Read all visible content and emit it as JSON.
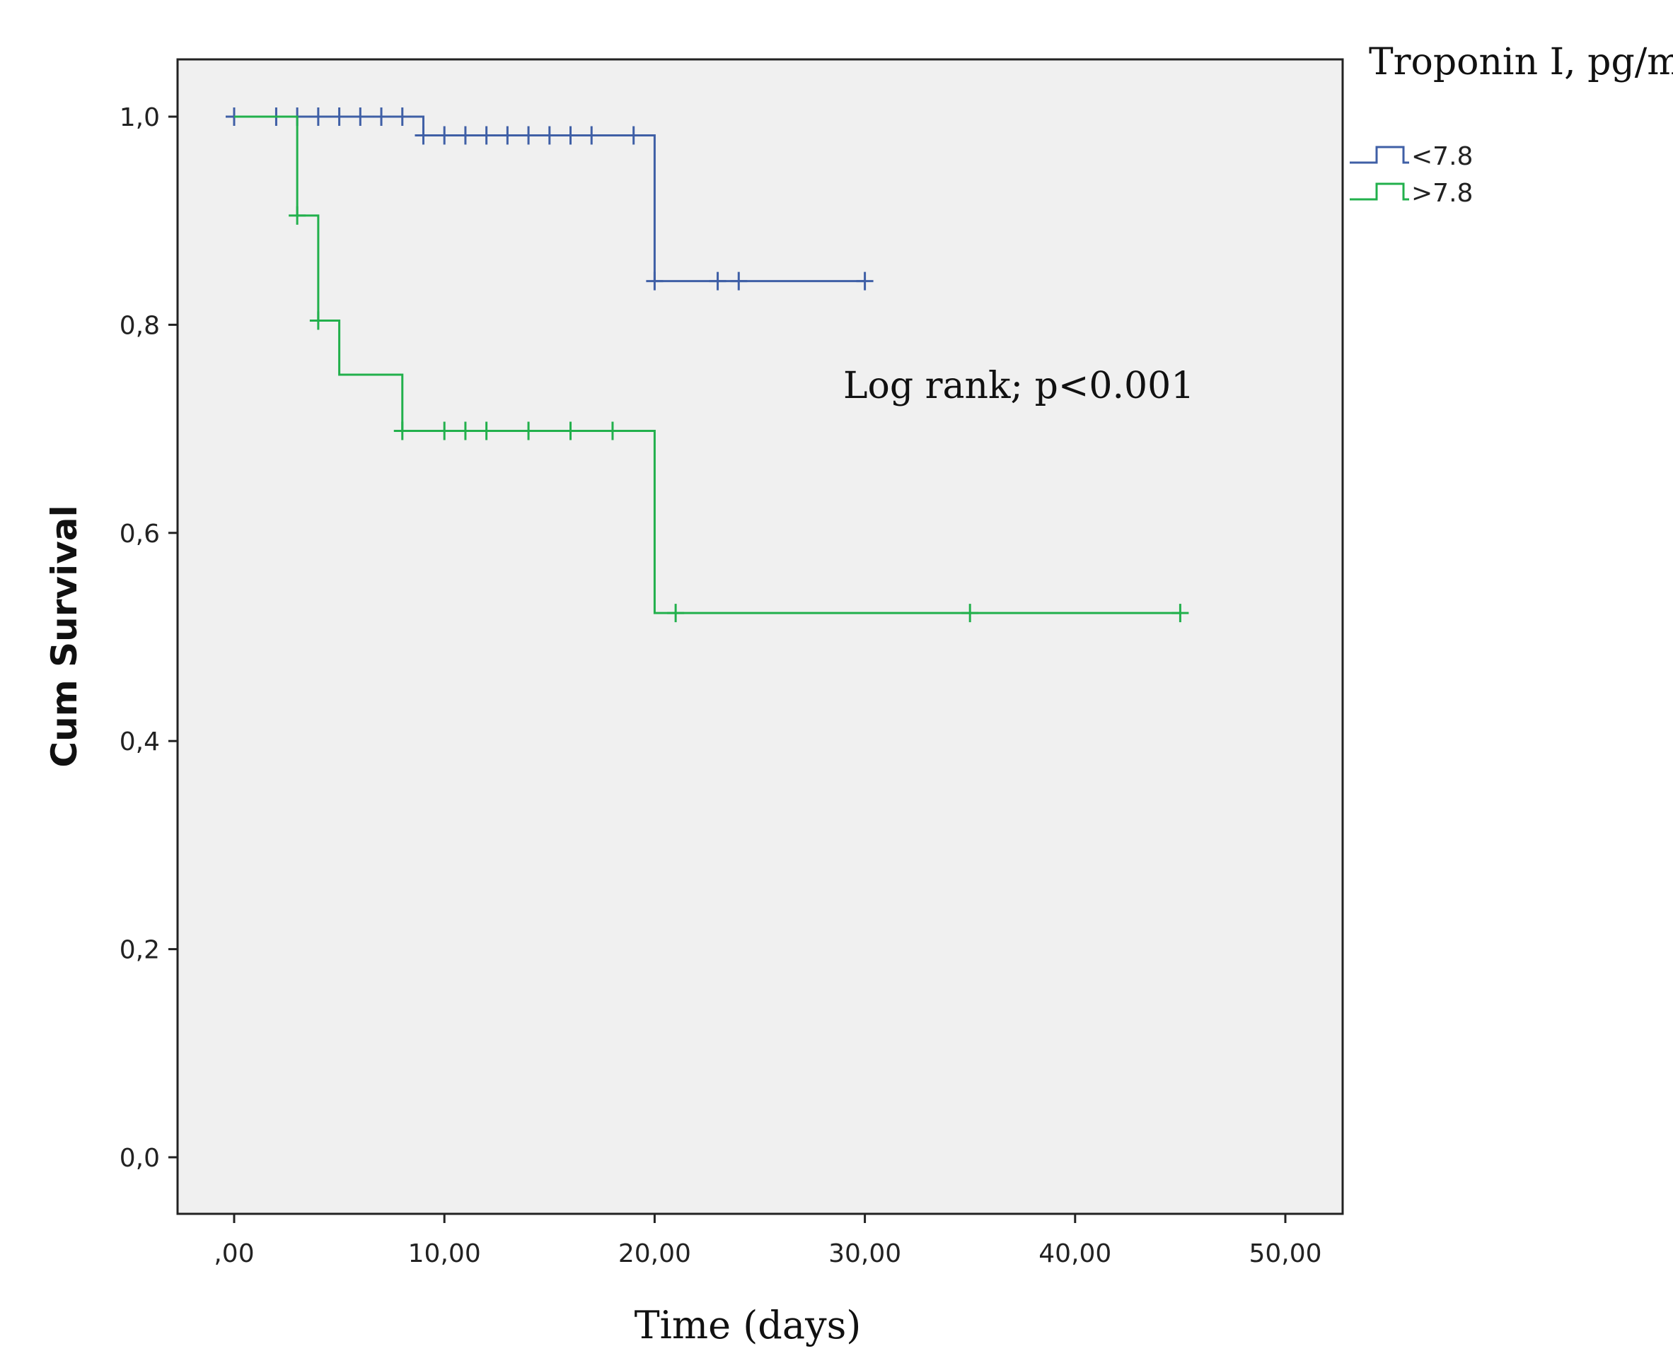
{
  "chart_data": {
    "type": "line",
    "subtype": "kaplan-meier-step",
    "title": "",
    "xlabel": "Time (days)",
    "ylabel": "Cum Survival",
    "xlim": [
      0,
      50
    ],
    "ylim": [
      0,
      1
    ],
    "x_ticks": [
      0,
      10,
      20,
      30,
      40,
      50
    ],
    "x_tick_labels": [
      ",00",
      "10,00",
      "20,00",
      "30,00",
      "40,00",
      "50,00"
    ],
    "y_ticks": [
      0,
      0.2,
      0.4,
      0.6,
      0.8,
      1.0
    ],
    "y_tick_labels": [
      "0,0",
      "0,2",
      "0,4",
      "0,6",
      "0,8",
      "1,0"
    ],
    "grid": false,
    "background": "#f0f0f0",
    "legend": {
      "title": "Troponin I, pg/ml",
      "placement": "right-outside-top"
    },
    "annotation": "Log rank; p<0.001",
    "series": [
      {
        "name": "<7.8",
        "color": "#3f5fa6",
        "steps": [
          [
            0,
            1.0
          ],
          [
            9,
            0.982
          ],
          [
            20,
            0.842
          ]
        ],
        "end_time": 30,
        "censored": [
          [
            0,
            1.0
          ],
          [
            2,
            1.0
          ],
          [
            3,
            1.0
          ],
          [
            4,
            1.0
          ],
          [
            5,
            1.0
          ],
          [
            6,
            1.0
          ],
          [
            7,
            1.0
          ],
          [
            8,
            1.0
          ],
          [
            9,
            0.982
          ],
          [
            10,
            0.982
          ],
          [
            11,
            0.982
          ],
          [
            12,
            0.982
          ],
          [
            13,
            0.982
          ],
          [
            14,
            0.982
          ],
          [
            15,
            0.982
          ],
          [
            16,
            0.982
          ],
          [
            17,
            0.982
          ],
          [
            19,
            0.982
          ],
          [
            20,
            0.842
          ],
          [
            23,
            0.842
          ],
          [
            24,
            0.842
          ],
          [
            30,
            0.842
          ]
        ]
      },
      {
        "name": ">7.8",
        "color": "#22b04c",
        "steps": [
          [
            0,
            1.0
          ],
          [
            3,
            0.905
          ],
          [
            4,
            0.804
          ],
          [
            5,
            0.752
          ],
          [
            8,
            0.698
          ],
          [
            20,
            0.523
          ]
        ],
        "end_time": 45,
        "censored": [
          [
            3,
            0.905
          ],
          [
            4,
            0.804
          ],
          [
            8,
            0.698
          ],
          [
            10,
            0.698
          ],
          [
            11,
            0.698
          ],
          [
            12,
            0.698
          ],
          [
            14,
            0.698
          ],
          [
            16,
            0.698
          ],
          [
            18,
            0.698
          ],
          [
            21,
            0.523
          ],
          [
            35,
            0.523
          ],
          [
            45,
            0.523
          ]
        ]
      }
    ]
  }
}
